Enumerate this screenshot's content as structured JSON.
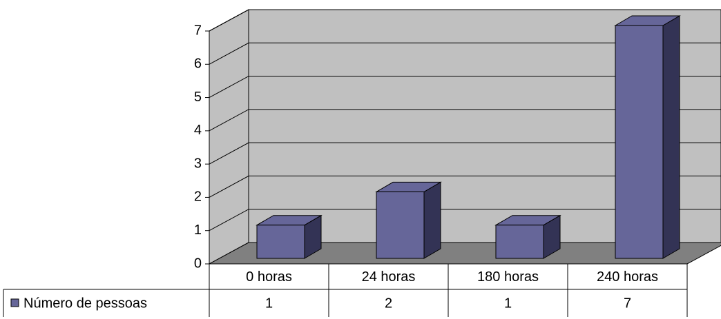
{
  "chart_data": {
    "type": "bar3d",
    "categories": [
      "0 horas",
      "24 horas",
      "180 horas",
      "240 horas"
    ],
    "series": [
      {
        "name": "Número de pessoas",
        "color": "#666699",
        "values": [
          1,
          2,
          1,
          7
        ]
      }
    ],
    "ylim": [
      0,
      7
    ],
    "yticks": [
      0,
      1,
      2,
      3,
      4,
      5,
      6,
      7
    ],
    "grid": true
  }
}
